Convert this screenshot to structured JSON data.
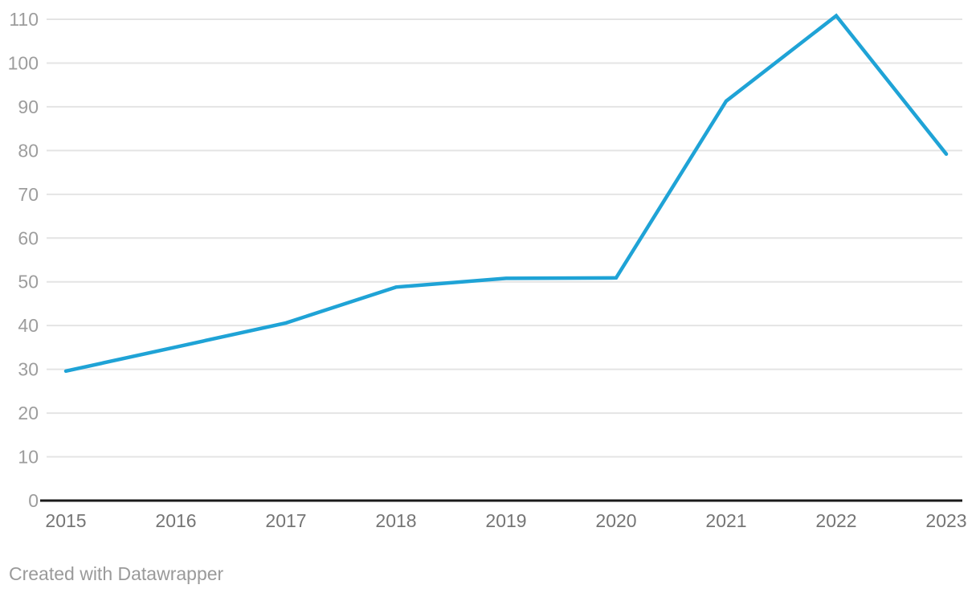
{
  "chart_data": {
    "type": "line",
    "categories": [
      "2015",
      "2016",
      "2017",
      "2018",
      "2019",
      "2020",
      "2021",
      "2022",
      "2023"
    ],
    "values": [
      29.6,
      35.1,
      40.6,
      48.8,
      50.8,
      50.9,
      91.3,
      110.8,
      79.2
    ],
    "title": "",
    "xlabel": "",
    "ylabel": "",
    "ylim": [
      0,
      110
    ],
    "y_tick_step": 10,
    "y_tick_labels": [
      "0",
      "10",
      "20",
      "30",
      "40",
      "50",
      "60",
      "70",
      "80",
      "90",
      "100",
      "110"
    ],
    "grid": "horizontal",
    "legend": "none",
    "line_color": "#1fa3d6"
  },
  "colors": {
    "line": "#1fa3d6",
    "gridline": "#e4e4e4",
    "axis_baseline": "#1a1a1a",
    "y_tick_label": "#9d9d9d",
    "x_tick_label": "#757575",
    "footer_text": "#9a9a9a",
    "background": "#ffffff"
  },
  "footer": {
    "attribution": "Created with Datawrapper"
  }
}
